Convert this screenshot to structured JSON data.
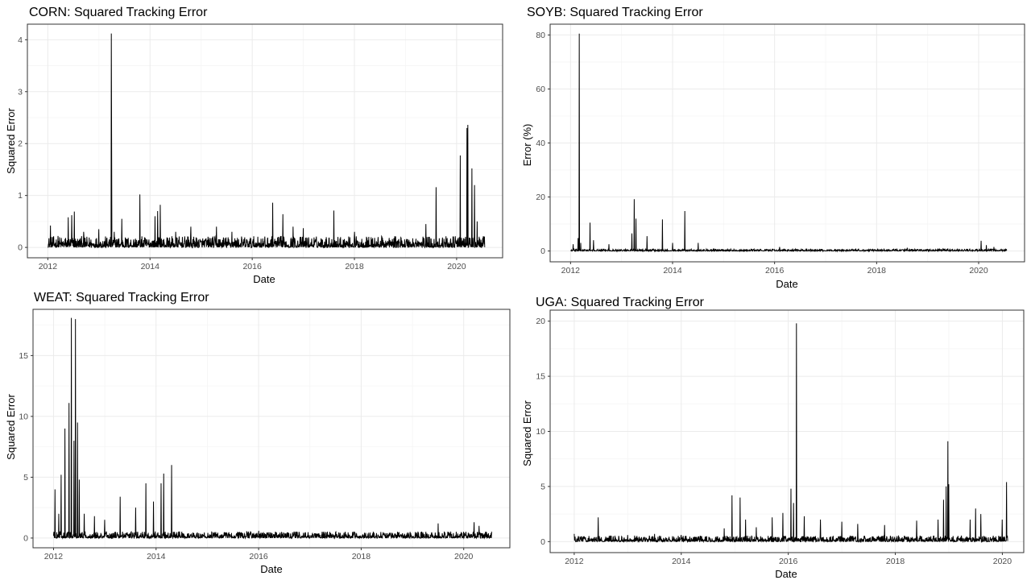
{
  "chart_data": [
    {
      "type": "line",
      "title": "CORN: Squared Tracking Error",
      "xlabel": "Date",
      "ylabel": "Squared Error",
      "x_ticks": [
        "2012",
        "2014",
        "2016",
        "2018",
        "2020"
      ],
      "y_ticks": [
        0,
        1,
        2,
        3,
        4
      ],
      "xlim": [
        2011.6,
        2020.9
      ],
      "ylim": [
        -0.2,
        4.3
      ],
      "x_range": [
        2012.0,
        2020.55
      ],
      "grid": true,
      "series": [
        {
          "baseline": 0.12,
          "spikes": [
            [
              2012.05,
              0.42
            ],
            [
              2012.2,
              0.22
            ],
            [
              2012.4,
              0.58
            ],
            [
              2012.47,
              0.62
            ],
            [
              2012.52,
              0.69
            ],
            [
              2012.7,
              0.3
            ],
            [
              2013.0,
              0.35
            ],
            [
              2013.24,
              4.12
            ],
            [
              2013.25,
              2.1
            ],
            [
              2013.3,
              0.3
            ],
            [
              2013.45,
              0.55
            ],
            [
              2013.8,
              1.02
            ],
            [
              2014.1,
              0.6
            ],
            [
              2014.15,
              0.7
            ],
            [
              2014.2,
              0.82
            ],
            [
              2014.5,
              0.3
            ],
            [
              2014.8,
              0.4
            ],
            [
              2015.3,
              0.4
            ],
            [
              2015.6,
              0.3
            ],
            [
              2016.4,
              0.86
            ],
            [
              2016.6,
              0.64
            ],
            [
              2016.8,
              0.4
            ],
            [
              2017.0,
              0.37
            ],
            [
              2017.6,
              0.71
            ],
            [
              2018.0,
              0.3
            ],
            [
              2019.4,
              0.45
            ],
            [
              2019.6,
              1.16
            ],
            [
              2020.07,
              1.77
            ],
            [
              2020.2,
              2.3
            ],
            [
              2020.22,
              2.36
            ],
            [
              2020.3,
              1.52
            ],
            [
              2020.35,
              1.2
            ],
            [
              2020.4,
              0.5
            ]
          ]
        }
      ]
    },
    {
      "type": "line",
      "title": "SOYB: Squared Tracking Error",
      "xlabel": "Date",
      "ylabel": "Error (%)",
      "x_ticks": [
        "2012",
        "2014",
        "2016",
        "2018",
        "2020"
      ],
      "y_ticks": [
        0,
        20,
        40,
        60,
        80
      ],
      "xlim": [
        2011.6,
        2020.9
      ],
      "ylim": [
        -4,
        84
      ],
      "x_range": [
        2012.0,
        2020.55
      ],
      "grid": true,
      "series": [
        {
          "baseline": 0.4,
          "spikes": [
            [
              2012.05,
              2.5
            ],
            [
              2012.15,
              4.8
            ],
            [
              2012.17,
              80.5
            ],
            [
              2012.2,
              3
            ],
            [
              2012.38,
              10.5
            ],
            [
              2012.45,
              4
            ],
            [
              2012.75,
              2.5
            ],
            [
              2013.2,
              6.5
            ],
            [
              2013.25,
              19.2
            ],
            [
              2013.28,
              12
            ],
            [
              2013.5,
              5.5
            ],
            [
              2013.8,
              11.7
            ],
            [
              2014.0,
              3
            ],
            [
              2014.24,
              14.8
            ],
            [
              2014.5,
              3
            ],
            [
              2016.1,
              1.5
            ],
            [
              2018.6,
              1.2
            ],
            [
              2020.05,
              3.8
            ],
            [
              2020.15,
              2.2
            ],
            [
              2020.3,
              1.5
            ]
          ]
        }
      ]
    },
    {
      "type": "line",
      "title": "WEAT: Squared Tracking Error",
      "xlabel": "Date",
      "ylabel": "Squared Error",
      "x_ticks": [
        "2012",
        "2014",
        "2016",
        "2018",
        "2020"
      ],
      "y_ticks": [
        0,
        5,
        10,
        15
      ],
      "xlim": [
        2011.6,
        2020.9
      ],
      "ylim": [
        -0.8,
        18.8
      ],
      "x_range": [
        2012.0,
        2020.55
      ],
      "grid": true,
      "series": [
        {
          "baseline": 0.3,
          "spikes": [
            [
              2012.03,
              4.0
            ],
            [
              2012.1,
              2.0
            ],
            [
              2012.15,
              5.2
            ],
            [
              2012.22,
              9.0
            ],
            [
              2012.3,
              11.1
            ],
            [
              2012.35,
              18.1
            ],
            [
              2012.4,
              8.0
            ],
            [
              2012.43,
              18.0
            ],
            [
              2012.47,
              9.5
            ],
            [
              2012.5,
              4.8
            ],
            [
              2012.6,
              2.0
            ],
            [
              2012.8,
              1.8
            ],
            [
              2013.0,
              1.5
            ],
            [
              2013.3,
              3.4
            ],
            [
              2013.6,
              2.5
            ],
            [
              2013.8,
              4.5
            ],
            [
              2013.95,
              3.0
            ],
            [
              2014.1,
              4.5
            ],
            [
              2014.15,
              5.3
            ],
            [
              2014.3,
              6.0
            ],
            [
              2016.0,
              0.6
            ],
            [
              2019.5,
              1.2
            ],
            [
              2020.2,
              1.3
            ],
            [
              2020.3,
              1.0
            ]
          ]
        }
      ]
    },
    {
      "type": "line",
      "title": "UGA: Squared Tracking Error",
      "xlabel": "Date",
      "ylabel": "Squared Error",
      "x_ticks": [
        "2012",
        "2014",
        "2016",
        "2018",
        "2020"
      ],
      "y_ticks": [
        0,
        5,
        10,
        15,
        20
      ],
      "xlim": [
        2011.55,
        2020.4
      ],
      "ylim": [
        -1,
        21
      ],
      "x_range": [
        2012.0,
        2020.1
      ],
      "grid": true,
      "series": [
        {
          "baseline": 0.3,
          "spikes": [
            [
              2012.0,
              0.7
            ],
            [
              2012.45,
              2.2
            ],
            [
              2013.0,
              0.6
            ],
            [
              2013.5,
              0.7
            ],
            [
              2014.0,
              0.6
            ],
            [
              2014.8,
              1.2
            ],
            [
              2014.95,
              4.2
            ],
            [
              2015.1,
              4.0
            ],
            [
              2015.2,
              2.0
            ],
            [
              2015.4,
              1.3
            ],
            [
              2015.7,
              2.2
            ],
            [
              2015.9,
              2.6
            ],
            [
              2016.05,
              4.8
            ],
            [
              2016.1,
              3.5
            ],
            [
              2016.15,
              19.8
            ],
            [
              2016.3,
              2.3
            ],
            [
              2016.6,
              2.0
            ],
            [
              2017.0,
              1.8
            ],
            [
              2017.3,
              1.6
            ],
            [
              2017.8,
              1.5
            ],
            [
              2018.4,
              1.9
            ],
            [
              2018.8,
              2.0
            ],
            [
              2018.9,
              3.8
            ],
            [
              2018.95,
              5.0
            ],
            [
              2018.98,
              9.1
            ],
            [
              2019.0,
              5.2
            ],
            [
              2019.4,
              2.0
            ],
            [
              2019.5,
              3.0
            ],
            [
              2019.6,
              2.5
            ],
            [
              2020.0,
              2.0
            ],
            [
              2020.08,
              5.4
            ]
          ]
        }
      ]
    }
  ]
}
